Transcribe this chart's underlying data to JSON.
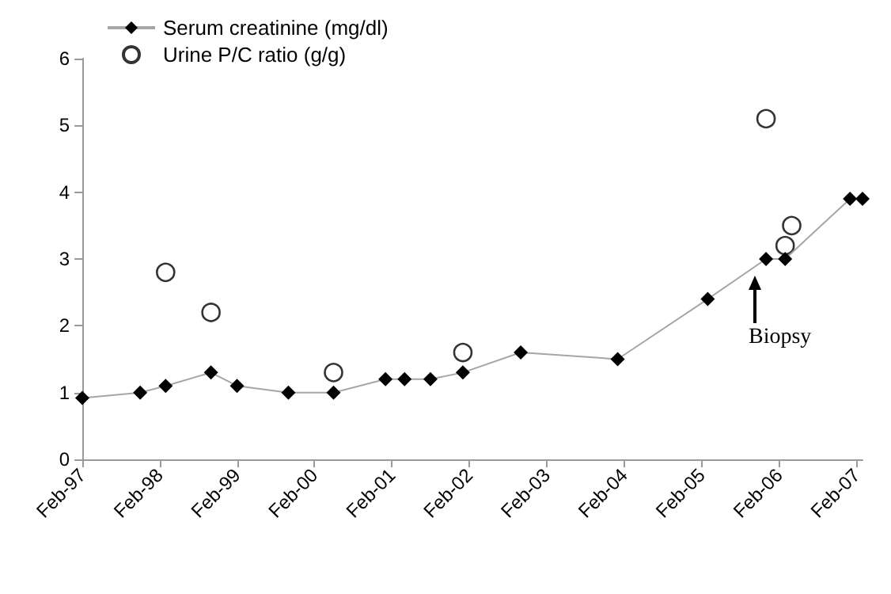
{
  "chart_data": {
    "type": "line",
    "xlim": [
      "1997-02",
      "2007-03"
    ],
    "ylim": [
      0,
      6
    ],
    "yticks": [
      0,
      1,
      2,
      3,
      4,
      5,
      6
    ],
    "xticks": [
      {
        "value": "1997-02",
        "label": "Feb-97"
      },
      {
        "value": "1998-02",
        "label": "Feb-98"
      },
      {
        "value": "1999-02",
        "label": "Feb-99"
      },
      {
        "value": "2000-02",
        "label": "Feb-00"
      },
      {
        "value": "2001-02",
        "label": "Feb-01"
      },
      {
        "value": "2002-02",
        "label": "Feb-02"
      },
      {
        "value": "2003-02",
        "label": "Feb-03"
      },
      {
        "value": "2004-02",
        "label": "Feb-04"
      },
      {
        "value": "2005-02",
        "label": "Feb-05"
      },
      {
        "value": "2006-02",
        "label": "Feb-06"
      },
      {
        "value": "2007-02",
        "label": "Feb-07"
      }
    ],
    "series": [
      {
        "name": "Serum creatinine (mg/dl)",
        "marker": "diamond",
        "color": "#000000",
        "x": [
          "1997-02",
          "1997-11",
          "1998-03",
          "1998-10",
          "1999-02",
          "1999-10",
          "2000-05",
          "2001-01",
          "2001-04",
          "2001-08",
          "2002-01",
          "2002-10",
          "2004-01",
          "2005-03",
          "2005-12",
          "2006-03",
          "2007-01",
          "2007-03"
        ],
        "values": [
          0.92,
          1.0,
          1.1,
          1.3,
          1.1,
          1.0,
          1.0,
          1.2,
          1.2,
          1.2,
          1.3,
          1.6,
          1.5,
          2.4,
          3.0,
          3.0,
          3.9,
          3.9
        ]
      },
      {
        "name": "Urine P/C ratio (g/g)",
        "type": "scatter",
        "marker": "circle",
        "color": "#000000",
        "x": [
          "1998-03",
          "1998-10",
          "2000-05",
          "2002-01",
          "2005-12",
          "2006-03",
          "2006-04"
        ],
        "values": [
          2.8,
          2.2,
          1.3,
          1.6,
          5.1,
          3.2,
          3.5
        ]
      }
    ],
    "annotations": [
      "Biopsy"
    ],
    "legend": "top left",
    "grid": false
  }
}
